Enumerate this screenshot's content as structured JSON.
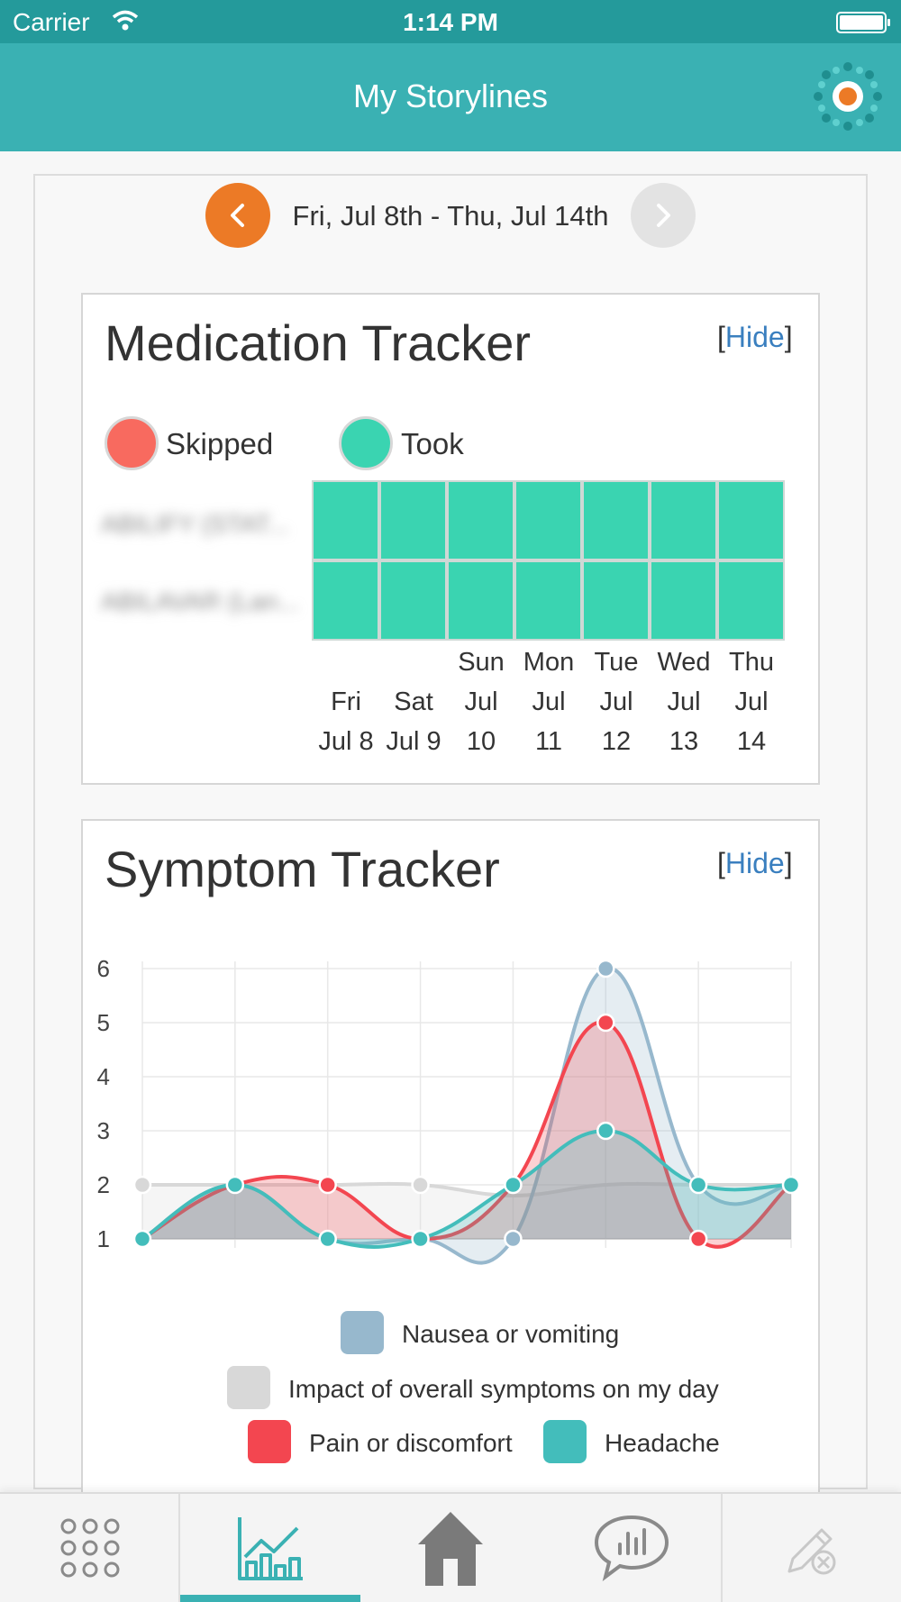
{
  "status_bar": {
    "carrier": "Carrier",
    "time": "1:14 PM"
  },
  "nav": {
    "title": "My Storylines",
    "logo_icon": "sun-logo-icon"
  },
  "date_nav": {
    "range": "Fri, Jul 8th - Thu, Jul 14th"
  },
  "medication_tracker": {
    "title": "Medication Tracker",
    "hide_open": "[",
    "hide_label": "Hide",
    "hide_close": "]",
    "legend": [
      {
        "label": "Skipped",
        "color": "#f86a5f"
      },
      {
        "label": "Took",
        "color": "#3ad4b1"
      }
    ],
    "medications": [
      "ABILIFY (STAT...",
      "ABILAVAR (Lan..."
    ],
    "days": [
      {
        "line1": "",
        "line2": "Fri",
        "line3": "Jul 8"
      },
      {
        "line1": "",
        "line2": "Sat",
        "line3": "Jul 9"
      },
      {
        "line1": "Sun",
        "line2": "Jul",
        "line3": "10"
      },
      {
        "line1": "Mon",
        "line2": "Jul",
        "line3": "11"
      },
      {
        "line1": "Tue",
        "line2": "Jul",
        "line3": "12"
      },
      {
        "line1": "Wed",
        "line2": "Jul",
        "line3": "13"
      },
      {
        "line1": "Thu",
        "line2": "Jul",
        "line3": "14"
      }
    ],
    "status_grid": [
      [
        "took",
        "took",
        "took",
        "took",
        "took",
        "took",
        "took"
      ],
      [
        "took",
        "took",
        "took",
        "took",
        "took",
        "took",
        "took"
      ]
    ]
  },
  "symptom_tracker": {
    "title": "Symptom Tracker",
    "hide_open": "[",
    "hide_label": "Hide",
    "hide_close": "]"
  },
  "chart_data": {
    "type": "area",
    "x_count": 8,
    "ylim": [
      1,
      6
    ],
    "yticks": [
      "1",
      "2",
      "3",
      "4",
      "5",
      "6"
    ],
    "grid": true,
    "legend_position": "bottom",
    "series": [
      {
        "name": "Impact of overall symptoms on my day",
        "color": "#d8d8d8",
        "values": [
          2,
          2,
          2,
          2,
          1.8,
          2,
          2,
          2
        ],
        "markers": [
          0,
          3
        ]
      },
      {
        "name": "Nausea or vomiting",
        "color": "#97b8cd",
        "values": [
          1,
          2,
          1,
          1,
          1,
          6,
          2,
          2
        ],
        "markers": [
          4,
          5
        ]
      },
      {
        "name": "Pain or discomfort",
        "color": "#f34650",
        "values": [
          1,
          2,
          2,
          1,
          2,
          5,
          1,
          2
        ],
        "markers": [
          2,
          5,
          6
        ]
      },
      {
        "name": "Headache",
        "color": "#43bdbb",
        "values": [
          1,
          2,
          1,
          1,
          2,
          3,
          2,
          2
        ],
        "markers": [
          0,
          1,
          2,
          3,
          4,
          5,
          6,
          7
        ]
      }
    ]
  },
  "tab_bar": {
    "tabs": [
      {
        "icon": "grid-menu-icon"
      },
      {
        "icon": "chart-icon",
        "active": true
      },
      {
        "icon": "home-icon"
      },
      {
        "icon": "chat-stats-icon"
      },
      {
        "icon": "edit-pencil-icon"
      }
    ]
  }
}
